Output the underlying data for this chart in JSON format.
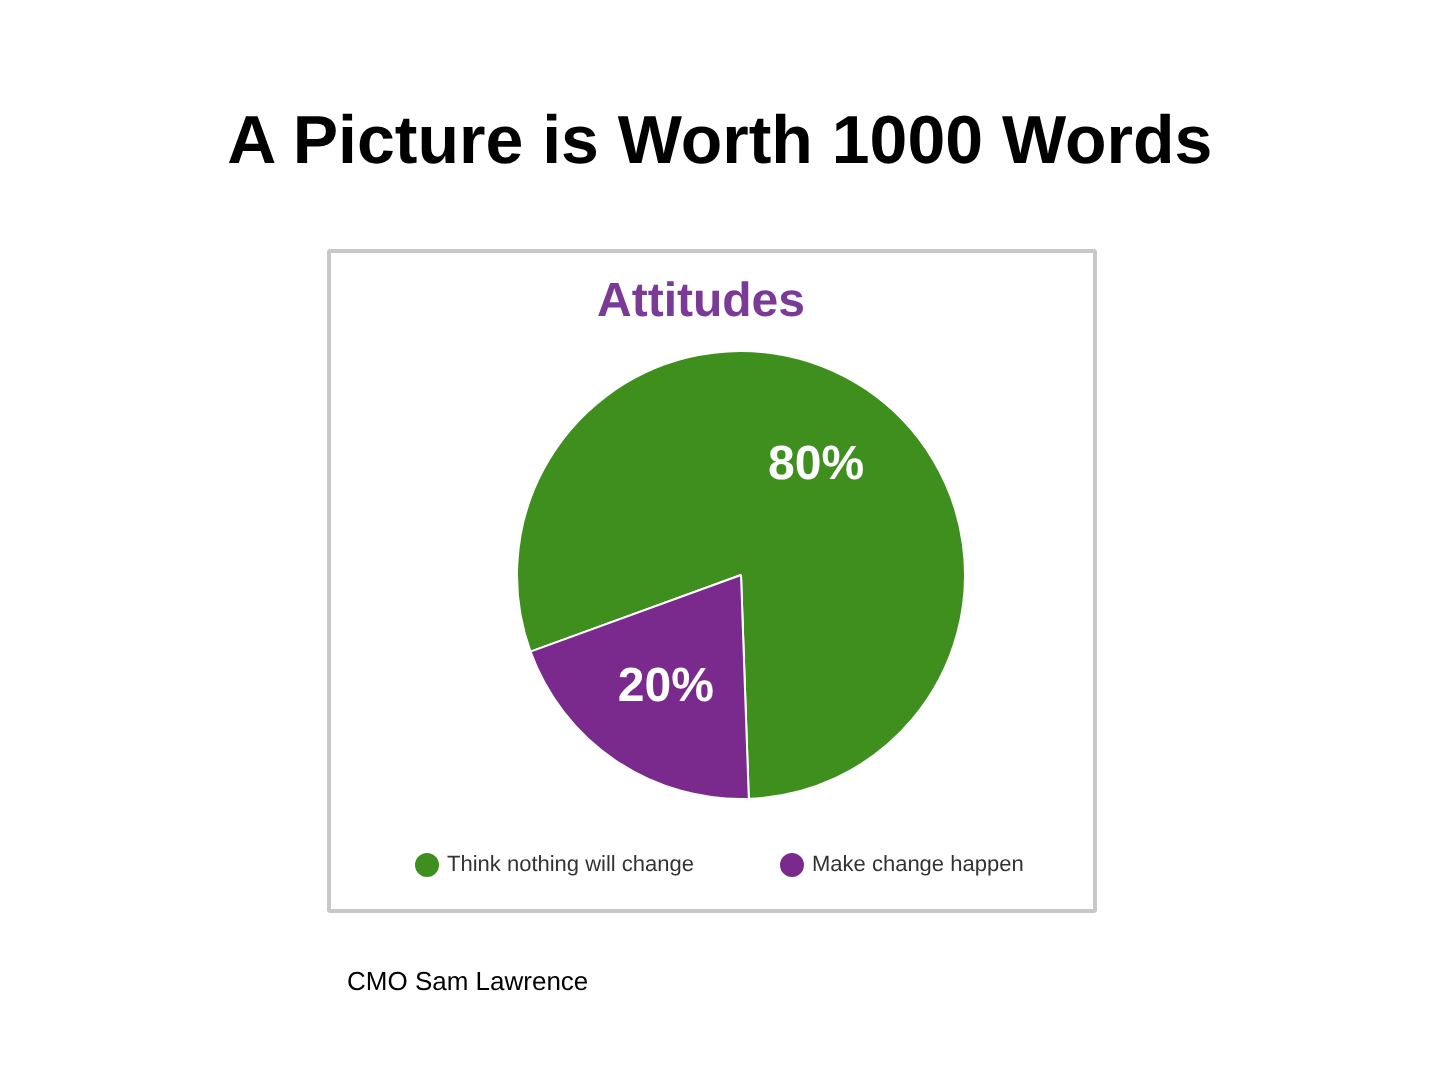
{
  "chart_data": {
    "type": "pie",
    "title": "A Picture is Worth 1000 Words",
    "subtitle": "Attitudes",
    "categories": [
      "Think nothing will change",
      "Make change happen"
    ],
    "values": [
      80,
      20
    ],
    "colors": [
      "#3f8f1f",
      "#7a2a8c"
    ],
    "value_labels": [
      "80%",
      "20%"
    ],
    "legend": "bottom",
    "annotations": [
      "CMO Sam Lawrence"
    ]
  }
}
